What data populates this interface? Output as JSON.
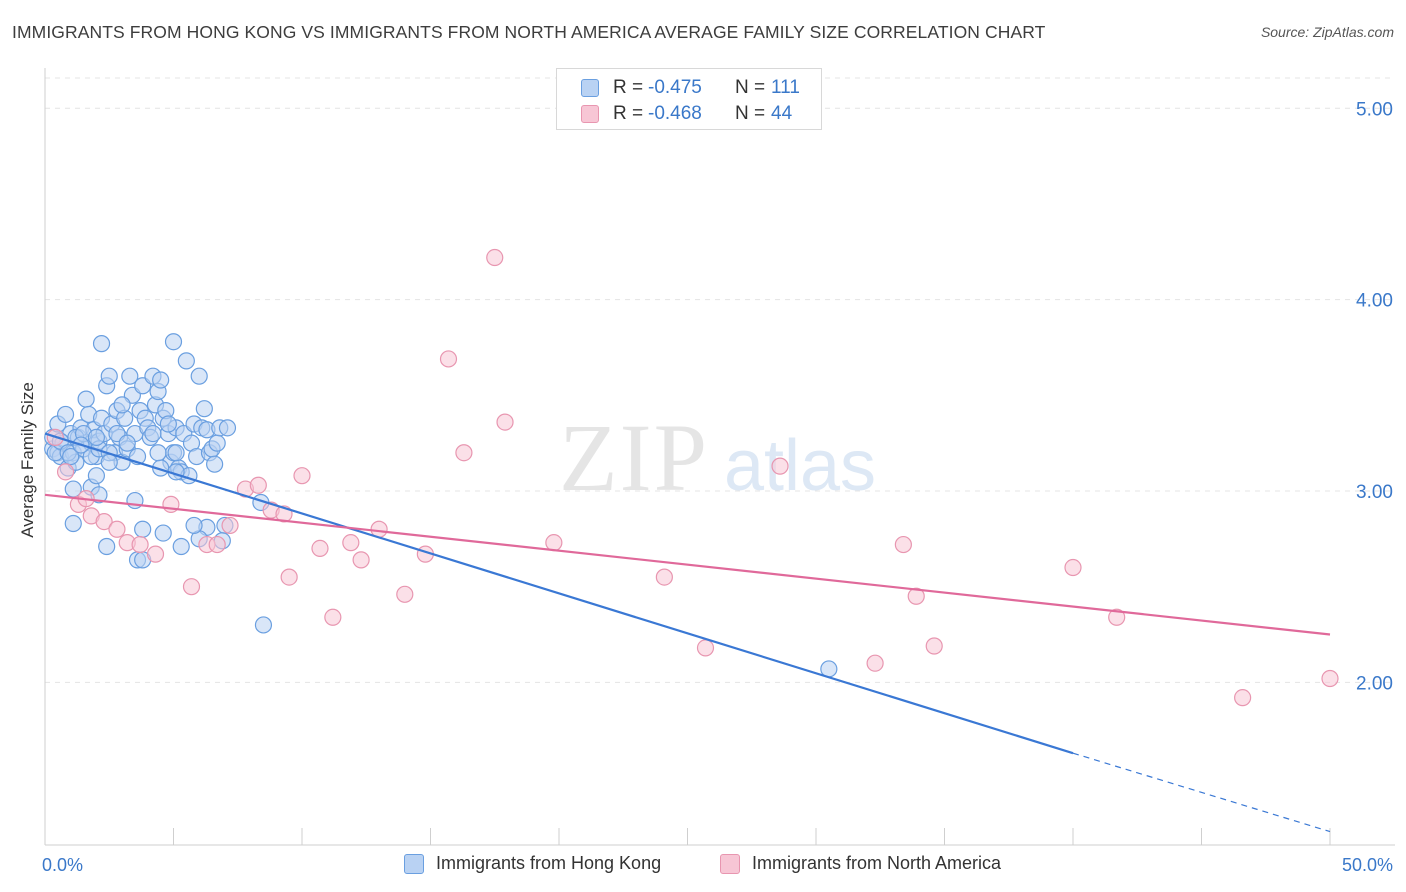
{
  "title": "IMMIGRANTS FROM HONG KONG VS IMMIGRANTS FROM NORTH AMERICA AVERAGE FAMILY SIZE CORRELATION CHART",
  "source": "Source: ZipAtlas.com",
  "watermark": {
    "zip": "ZIP",
    "atlas": "atlas"
  },
  "legend": {
    "rows": [
      {
        "r_label": "R =",
        "r_value": "-0.475",
        "n_label": "N =",
        "n_value": "111"
      },
      {
        "r_label": "R =",
        "r_value": "-0.468",
        "n_label": "N =",
        "n_value": "44"
      }
    ]
  },
  "chart_data": {
    "type": "scatter",
    "xlabel": "",
    "ylabel": "Average Family Size",
    "xlim": [
      0,
      50
    ],
    "ylim": [
      1.15,
      5.2
    ],
    "x_tick_labels": [
      {
        "value": 0,
        "label": "0.0%"
      },
      {
        "value": 50,
        "label": "50.0%"
      }
    ],
    "y_ticks": [
      {
        "value": 2.0,
        "label": "2.00"
      },
      {
        "value": 3.0,
        "label": "3.00"
      },
      {
        "value": 4.0,
        "label": "4.00"
      },
      {
        "value": 5.0,
        "label": "5.00"
      }
    ],
    "grid": "horizontal dashed",
    "series": [
      {
        "name": "Immigrants from Hong Kong",
        "color": "#6a9fe0",
        "fill": "#b9d2f3",
        "trend_color": "#3a78d4",
        "trend": {
          "x0": 0,
          "y0": 3.3,
          "x1": 40,
          "y1": 1.63,
          "dash_to_x": 50,
          "dash_to_y": 1.22
        },
        "points": [
          [
            0.3,
            3.22
          ],
          [
            0.3,
            3.28
          ],
          [
            0.5,
            3.2
          ],
          [
            0.5,
            3.35
          ],
          [
            0.6,
            3.18
          ],
          [
            0.7,
            3.25
          ],
          [
            0.8,
            3.4
          ],
          [
            0.9,
            3.12
          ],
          [
            1.0,
            3.3
          ],
          [
            1.1,
            3.2
          ],
          [
            1.2,
            3.15
          ],
          [
            1.3,
            3.28
          ],
          [
            1.4,
            3.33
          ],
          [
            1.5,
            3.22
          ],
          [
            1.6,
            3.48
          ],
          [
            1.7,
            3.4
          ],
          [
            1.8,
            3.25
          ],
          [
            1.9,
            3.32
          ],
          [
            2.0,
            3.18
          ],
          [
            2.1,
            3.26
          ],
          [
            2.2,
            3.38
          ],
          [
            2.3,
            3.3
          ],
          [
            2.4,
            3.55
          ],
          [
            2.5,
            3.6
          ],
          [
            2.6,
            3.35
          ],
          [
            2.7,
            3.2
          ],
          [
            2.8,
            3.42
          ],
          [
            2.9,
            3.28
          ],
          [
            3.0,
            3.15
          ],
          [
            3.1,
            3.38
          ],
          [
            3.2,
            3.22
          ],
          [
            3.3,
            3.6
          ],
          [
            3.4,
            3.5
          ],
          [
            3.5,
            3.3
          ],
          [
            3.6,
            3.18
          ],
          [
            3.7,
            3.42
          ],
          [
            3.8,
            3.55
          ],
          [
            3.9,
            3.38
          ],
          [
            4.0,
            3.33
          ],
          [
            4.1,
            3.28
          ],
          [
            4.2,
            3.6
          ],
          [
            4.3,
            3.45
          ],
          [
            4.4,
            3.52
          ],
          [
            4.5,
            3.58
          ],
          [
            4.6,
            3.38
          ],
          [
            4.7,
            3.42
          ],
          [
            4.8,
            3.3
          ],
          [
            4.9,
            3.15
          ],
          [
            5.0,
            3.2
          ],
          [
            5.1,
            3.33
          ],
          [
            5.2,
            3.12
          ],
          [
            5.3,
            3.1
          ],
          [
            5.4,
            3.3
          ],
          [
            5.5,
            3.68
          ],
          [
            5.6,
            3.08
          ],
          [
            5.7,
            3.25
          ],
          [
            5.8,
            3.35
          ],
          [
            5.9,
            3.18
          ],
          [
            6.0,
            3.6
          ],
          [
            6.1,
            3.33
          ],
          [
            6.2,
            3.43
          ],
          [
            6.3,
            3.32
          ],
          [
            6.4,
            3.2
          ],
          [
            6.5,
            3.22
          ],
          [
            6.6,
            3.14
          ],
          [
            6.7,
            3.25
          ],
          [
            6.8,
            3.33
          ],
          [
            0.4,
            3.2
          ],
          [
            0.6,
            3.26
          ],
          [
            0.9,
            3.2
          ],
          [
            1.2,
            3.28
          ],
          [
            1.5,
            3.3
          ],
          [
            1.8,
            3.18
          ],
          [
            2.1,
            3.22
          ],
          [
            2.5,
            3.2
          ],
          [
            2.8,
            3.3
          ],
          [
            3.2,
            3.25
          ],
          [
            1.0,
            3.18
          ],
          [
            1.4,
            3.24
          ],
          [
            2.0,
            3.28
          ],
          [
            1.8,
            3.02
          ],
          [
            1.1,
            3.01
          ],
          [
            2.1,
            2.98
          ],
          [
            3.5,
            2.95
          ],
          [
            2.0,
            3.08
          ],
          [
            2.5,
            3.15
          ],
          [
            5.1,
            3.2
          ],
          [
            4.5,
            3.12
          ],
          [
            6.3,
            2.81
          ],
          [
            7.0,
            2.82
          ],
          [
            4.6,
            2.78
          ],
          [
            3.8,
            2.8
          ],
          [
            6.9,
            2.74
          ],
          [
            6.0,
            2.75
          ],
          [
            2.4,
            2.71
          ],
          [
            5.3,
            2.71
          ],
          [
            3.6,
            2.64
          ],
          [
            3.8,
            2.64
          ],
          [
            8.4,
            2.94
          ],
          [
            4.4,
            3.2
          ],
          [
            5.1,
            3.1
          ],
          [
            4.8,
            3.35
          ],
          [
            3.0,
            3.45
          ],
          [
            2.2,
            3.77
          ],
          [
            4.2,
            3.3
          ],
          [
            5.0,
            3.78
          ],
          [
            1.1,
            2.83
          ],
          [
            5.8,
            2.82
          ],
          [
            7.1,
            3.33
          ],
          [
            8.5,
            2.3
          ],
          [
            30.5,
            2.07
          ]
        ]
      },
      {
        "name": "Immigrants from North America",
        "color": "#e896b0",
        "fill": "#f7c6d5",
        "trend_color": "#e0699a",
        "trend": {
          "x0": 0,
          "y0": 2.98,
          "x1": 50,
          "y1": 2.25
        },
        "points": [
          [
            0.4,
            3.28
          ],
          [
            0.8,
            3.1
          ],
          [
            1.3,
            2.93
          ],
          [
            1.6,
            2.96
          ],
          [
            1.8,
            2.87
          ],
          [
            2.3,
            2.84
          ],
          [
            2.8,
            2.8
          ],
          [
            3.2,
            2.73
          ],
          [
            3.7,
            2.72
          ],
          [
            4.3,
            2.67
          ],
          [
            4.9,
            2.93
          ],
          [
            5.7,
            2.5
          ],
          [
            6.3,
            2.72
          ],
          [
            6.7,
            2.72
          ],
          [
            7.2,
            2.82
          ],
          [
            7.8,
            3.01
          ],
          [
            8.3,
            3.03
          ],
          [
            8.8,
            2.9
          ],
          [
            9.3,
            2.88
          ],
          [
            9.5,
            2.55
          ],
          [
            10.0,
            3.08
          ],
          [
            10.7,
            2.7
          ],
          [
            11.2,
            2.34
          ],
          [
            11.9,
            2.73
          ],
          [
            12.3,
            2.64
          ],
          [
            13.0,
            2.8
          ],
          [
            14.0,
            2.46
          ],
          [
            14.8,
            2.67
          ],
          [
            15.7,
            3.69
          ],
          [
            16.3,
            3.2
          ],
          [
            17.5,
            4.22
          ],
          [
            17.9,
            3.36
          ],
          [
            19.8,
            2.73
          ],
          [
            24.1,
            2.55
          ],
          [
            25.7,
            2.18
          ],
          [
            28.6,
            3.13
          ],
          [
            32.3,
            2.1
          ],
          [
            33.4,
            2.72
          ],
          [
            33.9,
            2.45
          ],
          [
            34.6,
            2.19
          ],
          [
            40.0,
            2.6
          ],
          [
            41.7,
            2.34
          ],
          [
            46.6,
            1.92
          ],
          [
            50.0,
            2.02
          ]
        ]
      }
    ]
  }
}
